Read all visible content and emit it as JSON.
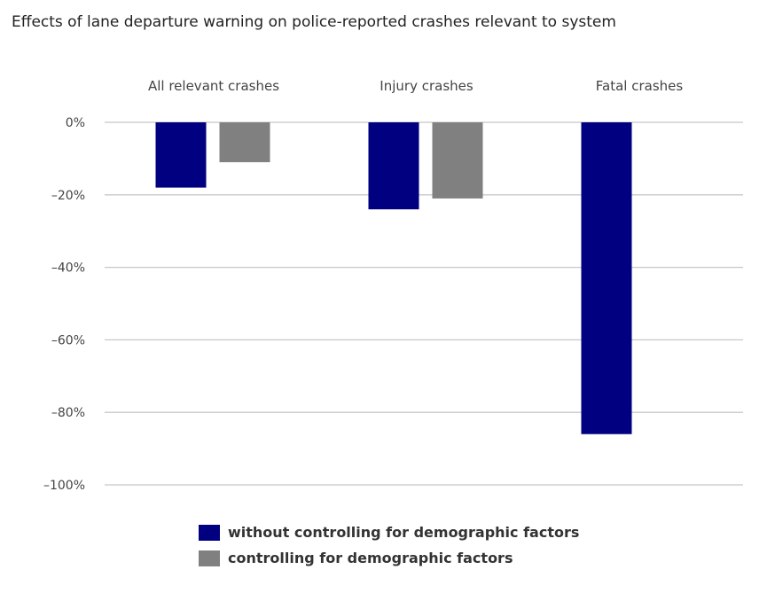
{
  "chart_data": {
    "type": "bar",
    "title": "Effects of lane departure warning on police-reported crashes relevant to system",
    "categories": [
      "All relevant crashes",
      "Injury crashes",
      "Fatal crashes"
    ],
    "series": [
      {
        "name": "without controlling for demographic factors",
        "color": "#000080",
        "values": [
          -18,
          -24,
          -86
        ]
      },
      {
        "name": "controlling for demographic factors",
        "color": "#808080",
        "values": [
          -11,
          -21,
          null
        ]
      }
    ],
    "yticks": [
      "0%",
      "–20%",
      "–40%",
      "–60%",
      "–80%",
      "–100%"
    ],
    "ytick_values": [
      0,
      -20,
      -40,
      -60,
      -80,
      -100
    ],
    "ylim": [
      -100,
      0
    ],
    "xlabel": "",
    "ylabel": "",
    "grid": true,
    "category_labels_position": "top",
    "legend_position": "bottom"
  }
}
